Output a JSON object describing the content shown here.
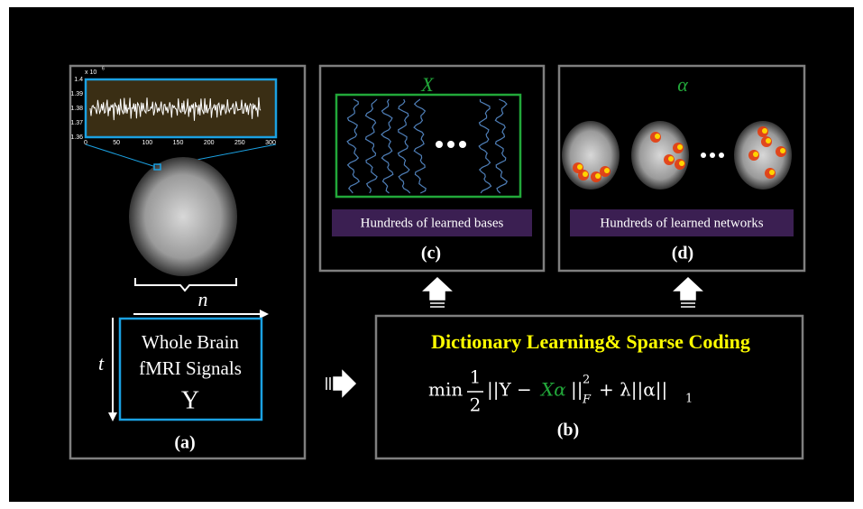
{
  "panel_a": {
    "inset": {
      "y_exponent": "x 10",
      "y_exponent_power": "6",
      "yticks": [
        "1.4",
        "1.39",
        "1.38",
        "1.37",
        "1.36"
      ],
      "xticks": [
        "0",
        "50",
        "100",
        "150",
        "200",
        "250",
        "300"
      ]
    },
    "axis_n": "n",
    "axis_t": "t",
    "box": [
      "Whole Brain",
      "fMRI Signals",
      "Y"
    ],
    "label": "(a)"
  },
  "panel_b": {
    "title": "Dictionary Learning& Sparse Coding",
    "formula": {
      "min": "min",
      "num": "1",
      "den": "2",
      "left": "||Y −",
      "x_alpha": "Xα",
      "bars": "||",
      "sup": "2",
      "sub": "F",
      "right": "+ λ||α||",
      "sub1": "1"
    },
    "label": "(b)"
  },
  "panel_c": {
    "symbol": "X",
    "caption": "Hundreds of learned bases",
    "label": "(c)"
  },
  "panel_d": {
    "symbol": "α",
    "caption": "Hundreds of learned networks",
    "label": "(d)"
  }
}
